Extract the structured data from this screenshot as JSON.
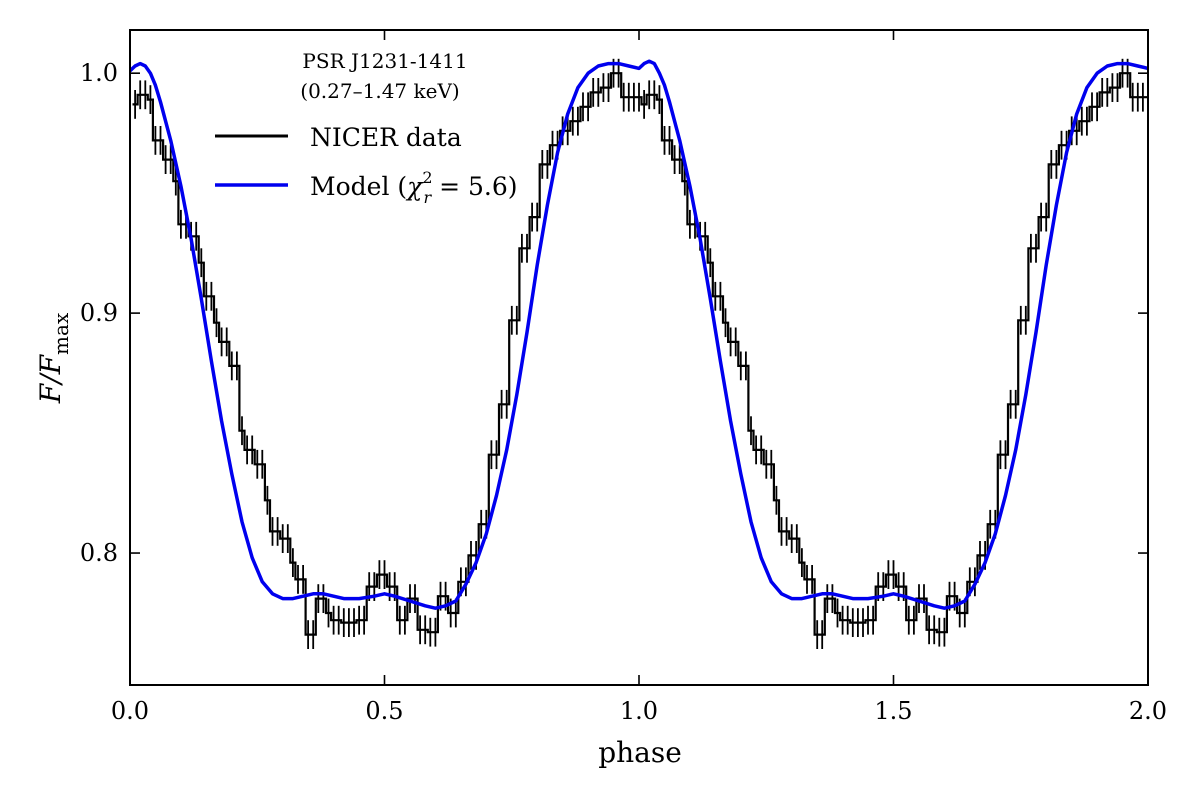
{
  "chart_data": {
    "type": "line",
    "title": "",
    "xlabel": "phase",
    "ylabel": "F/F_max",
    "ylabel_parts": {
      "main": "F/F",
      "sub": "max"
    },
    "xlim": [
      0.0,
      2.0
    ],
    "ylim": [
      0.745,
      1.018
    ],
    "xticks": [
      0.0,
      0.5,
      1.0,
      1.5,
      2.0
    ],
    "xtick_labels": [
      "0.0",
      "0.5",
      "1.0",
      "1.5",
      "2.0"
    ],
    "yticks": [
      0.8,
      0.9,
      1.0
    ],
    "ytick_labels": [
      "0.8",
      "0.9",
      "1.0"
    ],
    "legend": {
      "placement": "top-left",
      "title_line1": "PSR J1231-1411",
      "title_line2": "(0.27–1.47 keV)",
      "data_label": "NICER data",
      "model_label_prefix": "Model (",
      "model_label_symbol": "χ",
      "model_label_sub": "r",
      "model_label_sup": "2",
      "model_label_suffix": " = 5.6)"
    },
    "series": [
      {
        "name": "NICER data",
        "style": "step-with-errorbars",
        "color": "#000000",
        "bin_width": 0.01,
        "error": 0.006,
        "x": [
          0.01,
          0.02,
          0.03,
          0.04,
          0.05,
          0.06,
          0.07,
          0.08,
          0.09,
          0.1,
          0.11,
          0.12,
          0.13,
          0.14,
          0.15,
          0.16,
          0.17,
          0.18,
          0.19,
          0.2,
          0.21,
          0.22,
          0.23,
          0.24,
          0.25,
          0.26,
          0.27,
          0.28,
          0.29,
          0.3,
          0.31,
          0.32,
          0.33,
          0.34,
          0.35,
          0.36,
          0.37,
          0.38,
          0.39,
          0.4,
          0.41,
          0.42,
          0.43,
          0.44,
          0.45,
          0.46,
          0.47,
          0.48,
          0.49,
          0.5,
          0.51,
          0.52,
          0.53,
          0.54,
          0.55,
          0.56,
          0.57,
          0.58,
          0.59,
          0.6,
          0.61,
          0.62,
          0.63,
          0.64,
          0.65,
          0.66,
          0.67,
          0.68,
          0.69,
          0.7,
          0.71,
          0.72,
          0.73,
          0.74,
          0.75,
          0.76,
          0.77,
          0.78,
          0.79,
          0.8,
          0.81,
          0.82,
          0.83,
          0.84,
          0.85,
          0.86,
          0.87,
          0.88,
          0.89,
          0.9,
          0.91,
          0.92,
          0.93,
          0.94,
          0.95,
          0.96,
          0.97,
          0.98,
          0.99,
          1.0
        ],
        "y": [
          0.987,
          0.991,
          0.991,
          0.989,
          0.972,
          0.972,
          0.964,
          0.964,
          0.955,
          0.937,
          0.937,
          0.932,
          0.932,
          0.921,
          0.907,
          0.907,
          0.896,
          0.888,
          0.888,
          0.878,
          0.878,
          0.851,
          0.843,
          0.843,
          0.837,
          0.837,
          0.822,
          0.809,
          0.809,
          0.806,
          0.806,
          0.796,
          0.789,
          0.789,
          0.766,
          0.766,
          0.781,
          0.781,
          0.775,
          0.772,
          0.772,
          0.771,
          0.771,
          0.771,
          0.772,
          0.772,
          0.786,
          0.786,
          0.791,
          0.791,
          0.786,
          0.786,
          0.772,
          0.772,
          0.781,
          0.781,
          0.768,
          0.768,
          0.767,
          0.767,
          0.782,
          0.782,
          0.775,
          0.775,
          0.788,
          0.788,
          0.799,
          0.799,
          0.812,
          0.812,
          0.841,
          0.841,
          0.862,
          0.862,
          0.897,
          0.897,
          0.927,
          0.927,
          0.94,
          0.94,
          0.962,
          0.962,
          0.97,
          0.97,
          0.976,
          0.976,
          0.98,
          0.98,
          0.986,
          0.986,
          0.992,
          0.992,
          0.994,
          0.994,
          1.0,
          1.0,
          0.99,
          0.99,
          0.99,
          0.99
        ]
      },
      {
        "name": "Model (χ_r^2 = 5.6)",
        "style": "smooth-line",
        "color": "#0000ee",
        "x": [
          0.0,
          0.01,
          0.02,
          0.03,
          0.04,
          0.05,
          0.06,
          0.08,
          0.1,
          0.12,
          0.14,
          0.16,
          0.18,
          0.2,
          0.22,
          0.24,
          0.26,
          0.28,
          0.3,
          0.32,
          0.34,
          0.36,
          0.38,
          0.4,
          0.42,
          0.45,
          0.48,
          0.5,
          0.52,
          0.55,
          0.58,
          0.6,
          0.62,
          0.64,
          0.66,
          0.68,
          0.7,
          0.72,
          0.74,
          0.76,
          0.78,
          0.8,
          0.82,
          0.84,
          0.86,
          0.88,
          0.9,
          0.92,
          0.94,
          0.96,
          0.98,
          1.0,
          1.01,
          1.02,
          1.03,
          1.04,
          1.05,
          1.06,
          1.08,
          1.1,
          1.12,
          1.14,
          1.16,
          1.18,
          1.2,
          1.22,
          1.24,
          1.26,
          1.28,
          1.3,
          1.32,
          1.34,
          1.36,
          1.38,
          1.4,
          1.42,
          1.45,
          1.48,
          1.5,
          1.52,
          1.55,
          1.58,
          1.6,
          1.62,
          1.64,
          1.66,
          1.68,
          1.7,
          1.72,
          1.74,
          1.76,
          1.78,
          1.8,
          1.82,
          1.84,
          1.86,
          1.88,
          1.9,
          1.92,
          1.94,
          1.96,
          1.98,
          2.0
        ],
        "y": [
          1.001,
          1.003,
          1.004,
          1.003,
          1.0,
          0.995,
          0.988,
          0.972,
          0.953,
          0.931,
          0.906,
          0.88,
          0.855,
          0.833,
          0.813,
          0.798,
          0.788,
          0.783,
          0.781,
          0.781,
          0.782,
          0.783,
          0.783,
          0.782,
          0.781,
          0.781,
          0.782,
          0.783,
          0.782,
          0.78,
          0.778,
          0.777,
          0.778,
          0.78,
          0.787,
          0.796,
          0.808,
          0.824,
          0.843,
          0.866,
          0.892,
          0.92,
          0.945,
          0.967,
          0.983,
          0.994,
          1.0,
          1.003,
          1.004,
          1.004,
          1.003,
          1.002,
          1.004,
          1.005,
          1.004,
          1.0,
          0.995,
          0.988,
          0.972,
          0.953,
          0.931,
          0.906,
          0.88,
          0.855,
          0.833,
          0.813,
          0.798,
          0.788,
          0.783,
          0.781,
          0.781,
          0.782,
          0.783,
          0.783,
          0.782,
          0.781,
          0.781,
          0.782,
          0.783,
          0.782,
          0.78,
          0.778,
          0.777,
          0.778,
          0.78,
          0.787,
          0.796,
          0.808,
          0.824,
          0.843,
          0.866,
          0.892,
          0.92,
          0.945,
          0.967,
          0.983,
          0.994,
          1.0,
          1.003,
          1.004,
          1.004,
          1.003,
          1.002
        ]
      }
    ],
    "grid": false
  }
}
